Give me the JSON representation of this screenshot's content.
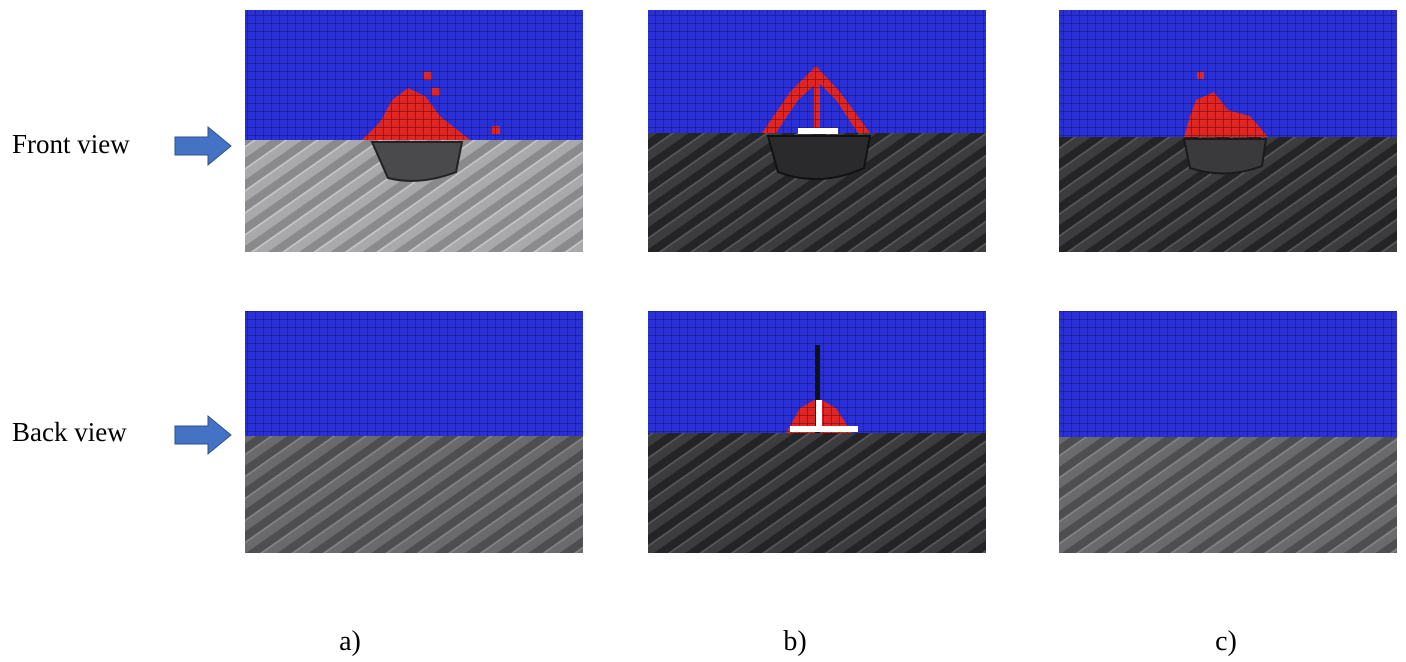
{
  "row_labels": [
    "Front view",
    "Back view"
  ],
  "column_labels": [
    "a)",
    "b)",
    "c)"
  ]
}
